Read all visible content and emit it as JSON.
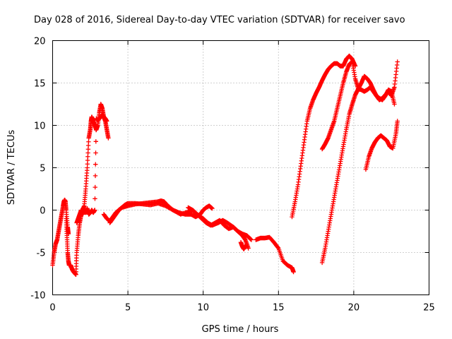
{
  "chart_data": {
    "type": "scatter",
    "title": "Day 028 of 2016, Sidereal Day-to-day VTEC variation (SDTVAR) for receiver savo",
    "xlabel": "GPS time / hours",
    "ylabel": "SDTVAR / TECUs",
    "xlim": [
      0,
      25
    ],
    "ylim": [
      -10,
      20
    ],
    "xticks": [
      "0",
      "5",
      "10",
      "15",
      "20",
      "25"
    ],
    "yticks": [
      "-10",
      "-5",
      "0",
      "5",
      "10",
      "15",
      "20"
    ],
    "grid": true,
    "marker": "+",
    "color": "#ff0000",
    "series": [
      {
        "name": "arc-1",
        "x": [
          0.0,
          0.1,
          0.2,
          0.3,
          0.4,
          0.5,
          0.6,
          0.7,
          0.75,
          0.8,
          0.85,
          0.9,
          1.0,
          1.05
        ],
        "y": [
          -6.5,
          -5.0,
          -4.0,
          -3.5,
          -2.5,
          -1.5,
          -0.5,
          0.5,
          1.0,
          1.2,
          1.0,
          0.0,
          -2.0,
          -2.8
        ]
      },
      {
        "name": "arc-2",
        "x": [
          0.9,
          0.95,
          1.0,
          1.05,
          1.1,
          1.2,
          1.3,
          1.4,
          1.5,
          1.55,
          1.6,
          1.7,
          1.8,
          1.9,
          2.0,
          2.1,
          2.2,
          2.3,
          2.4,
          2.5,
          2.55,
          2.6,
          2.7,
          2.8,
          2.9,
          3.0,
          3.1,
          3.2,
          3.3,
          3.4,
          3.5,
          3.6,
          3.7
        ],
        "y": [
          -1.0,
          -3.0,
          -5.0,
          -6.0,
          -6.5,
          -6.5,
          -7.0,
          -7.3,
          -7.5,
          -7.6,
          -5.0,
          -3.0,
          -1.5,
          -0.5,
          0.0,
          0.5,
          2.5,
          5.0,
          8.5,
          9.5,
          10.5,
          11.0,
          10.5,
          10.0,
          9.5,
          10.0,
          11.5,
          12.5,
          12.0,
          11.0,
          10.5,
          9.5,
          8.5
        ]
      },
      {
        "name": "arc-3",
        "x": [
          1.6,
          1.7,
          1.8,
          1.9,
          2.0,
          2.1,
          2.2,
          2.3,
          2.4,
          2.5,
          2.6,
          2.7,
          2.8,
          2.9,
          3.0,
          3.1,
          3.2,
          3.3,
          3.4,
          3.5,
          3.6
        ],
        "y": [
          -1.5,
          -1.0,
          -0.5,
          0.0,
          -0.5,
          0.0,
          -0.3,
          0.2,
          -0.5,
          -0.3,
          0.0,
          -0.3,
          0.0,
          10.8,
          10.6,
          10.8,
          11.0,
          11.2,
          11.0,
          10.8,
          10.5
        ]
      },
      {
        "name": "arc-4",
        "x": [
          3.4,
          3.6,
          3.8,
          4.0,
          4.2,
          4.4,
          4.6,
          4.8,
          5.0,
          5.5,
          6.0,
          6.5,
          7.0,
          7.5,
          8.0,
          8.5,
          9.0,
          9.3,
          9.6,
          10.0,
          10.3,
          10.6,
          11.0,
          11.3,
          11.6,
          12.0,
          12.3,
          12.6,
          12.9,
          13.2
        ],
        "y": [
          -0.5,
          -1.0,
          -1.3,
          -0.8,
          -0.3,
          0.0,
          0.3,
          0.6,
          0.8,
          0.8,
          0.7,
          0.6,
          0.8,
          0.5,
          0.0,
          -0.5,
          -0.2,
          0.0,
          -0.5,
          -1.0,
          -1.5,
          -1.8,
          -1.5,
          -1.2,
          -1.5,
          -2.0,
          -2.5,
          -2.8,
          -3.0,
          -3.5
        ]
      },
      {
        "name": "arc-5",
        "x": [
          3.8,
          4.0,
          4.2,
          4.4,
          4.6,
          5.0,
          5.5,
          6.0,
          6.5,
          7.0,
          7.2,
          7.4,
          7.6,
          8.0,
          8.4,
          8.8,
          9.2,
          9.5,
          9.8,
          10.0,
          10.2,
          10.4,
          10.6
        ],
        "y": [
          -1.5,
          -1.0,
          -0.5,
          0.0,
          0.3,
          0.5,
          0.7,
          0.8,
          0.9,
          1.0,
          1.1,
          1.0,
          0.6,
          0.0,
          -0.3,
          -0.5,
          -0.5,
          -0.8,
          -0.5,
          0.0,
          0.3,
          0.5,
          0.2
        ]
      },
      {
        "name": "arc-6",
        "x": [
          9.0,
          9.3,
          9.6,
          9.9,
          10.2,
          10.5,
          10.8,
          11.1,
          11.4,
          11.7,
          12.0,
          12.3,
          12.6,
          12.8,
          13.0
        ],
        "y": [
          0.3,
          0.0,
          -0.5,
          -1.0,
          -1.5,
          -1.8,
          -1.5,
          -1.2,
          -1.8,
          -2.2,
          -2.0,
          -2.5,
          -3.0,
          -3.5,
          -4.5
        ]
      },
      {
        "name": "arc-7",
        "x": [
          12.5,
          12.6,
          12.7,
          12.8
        ],
        "y": [
          -3.8,
          -4.3,
          -4.6,
          -4.2
        ]
      },
      {
        "name": "arc-8",
        "x": [
          13.5,
          13.8,
          14.1,
          14.4,
          14.7,
          15.0,
          15.3,
          15.6,
          15.9,
          16.0
        ],
        "y": [
          -3.5,
          -3.3,
          -3.3,
          -3.2,
          -3.8,
          -4.5,
          -6.0,
          -6.5,
          -6.8,
          -7.3
        ]
      },
      {
        "name": "arc-9",
        "x": [
          15.9,
          16.1,
          16.3,
          16.5,
          16.7,
          16.9,
          17.1,
          17.3,
          17.5,
          17.7,
          17.9,
          18.1,
          18.3,
          18.5,
          18.7,
          18.9,
          19.1,
          19.3,
          19.5,
          19.7,
          19.9,
          20.1
        ],
        "y": [
          -0.8,
          1.0,
          3.0,
          5.5,
          8.0,
          10.5,
          12.0,
          13.0,
          13.8,
          14.5,
          15.3,
          16.0,
          16.6,
          17.0,
          17.3,
          17.3,
          17.0,
          17.0,
          17.8,
          18.2,
          17.8,
          17.0
        ]
      },
      {
        "name": "arc-10",
        "x": [
          17.9,
          18.1,
          18.3,
          18.5,
          18.7,
          18.9,
          19.1,
          19.3,
          19.5,
          19.7,
          19.9,
          20.1,
          20.3,
          20.5,
          20.7,
          20.9,
          21.1,
          21.3,
          21.5,
          21.7,
          21.9,
          22.1,
          22.3,
          22.5,
          22.7,
          22.9
        ],
        "y": [
          7.2,
          7.8,
          8.5,
          9.5,
          10.5,
          12.0,
          13.5,
          15.0,
          16.3,
          17.2,
          17.5,
          15.5,
          14.3,
          15.0,
          15.8,
          15.5,
          15.0,
          14.2,
          13.5,
          13.0,
          13.2,
          13.6,
          14.0,
          13.5,
          14.5,
          17.5
        ]
      },
      {
        "name": "arc-11",
        "x": [
          17.9,
          18.1,
          18.3,
          18.5,
          18.7,
          18.9,
          19.1,
          19.3,
          19.5,
          19.7,
          19.9,
          20.1,
          20.3,
          20.5,
          20.7,
          20.9,
          21.1,
          21.3,
          21.5,
          21.7,
          21.9,
          22.1,
          22.3,
          22.5,
          22.7
        ],
        "y": [
          -6.2,
          -4.5,
          -2.5,
          -0.5,
          1.5,
          3.5,
          5.5,
          7.5,
          9.5,
          11.3,
          12.5,
          13.6,
          14.3,
          14.2,
          14.0,
          14.2,
          14.5,
          14.0,
          13.5,
          13.2,
          13.0,
          13.5,
          14.2,
          14.0,
          12.5
        ]
      },
      {
        "name": "arc-12",
        "x": [
          20.8,
          21.0,
          21.2,
          21.4,
          21.6,
          21.8,
          22.0,
          22.2,
          22.4,
          22.6,
          22.8,
          22.9
        ],
        "y": [
          4.8,
          6.3,
          7.3,
          8.0,
          8.5,
          8.8,
          8.5,
          8.2,
          7.5,
          7.3,
          9.0,
          10.5
        ]
      }
    ]
  }
}
